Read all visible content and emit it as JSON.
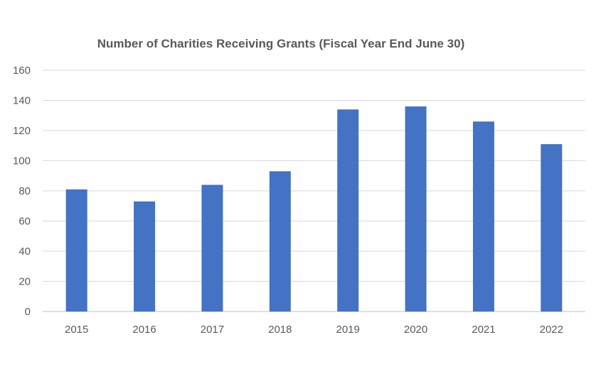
{
  "chart_data": {
    "type": "bar",
    "title": "Number of Charities Receiving Grants (Fiscal Year End June 30)",
    "xlabel": "",
    "ylabel": "",
    "categories": [
      "2015",
      "2016",
      "2017",
      "2018",
      "2019",
      "2020",
      "2021",
      "2022"
    ],
    "values": [
      81,
      73,
      84,
      93,
      134,
      136,
      126,
      111
    ],
    "ylim": [
      0,
      160
    ],
    "yticks": [
      0,
      20,
      40,
      60,
      80,
      100,
      120,
      140,
      160
    ],
    "grid": true,
    "legend": "none",
    "bar_color": "#4472C4"
  }
}
